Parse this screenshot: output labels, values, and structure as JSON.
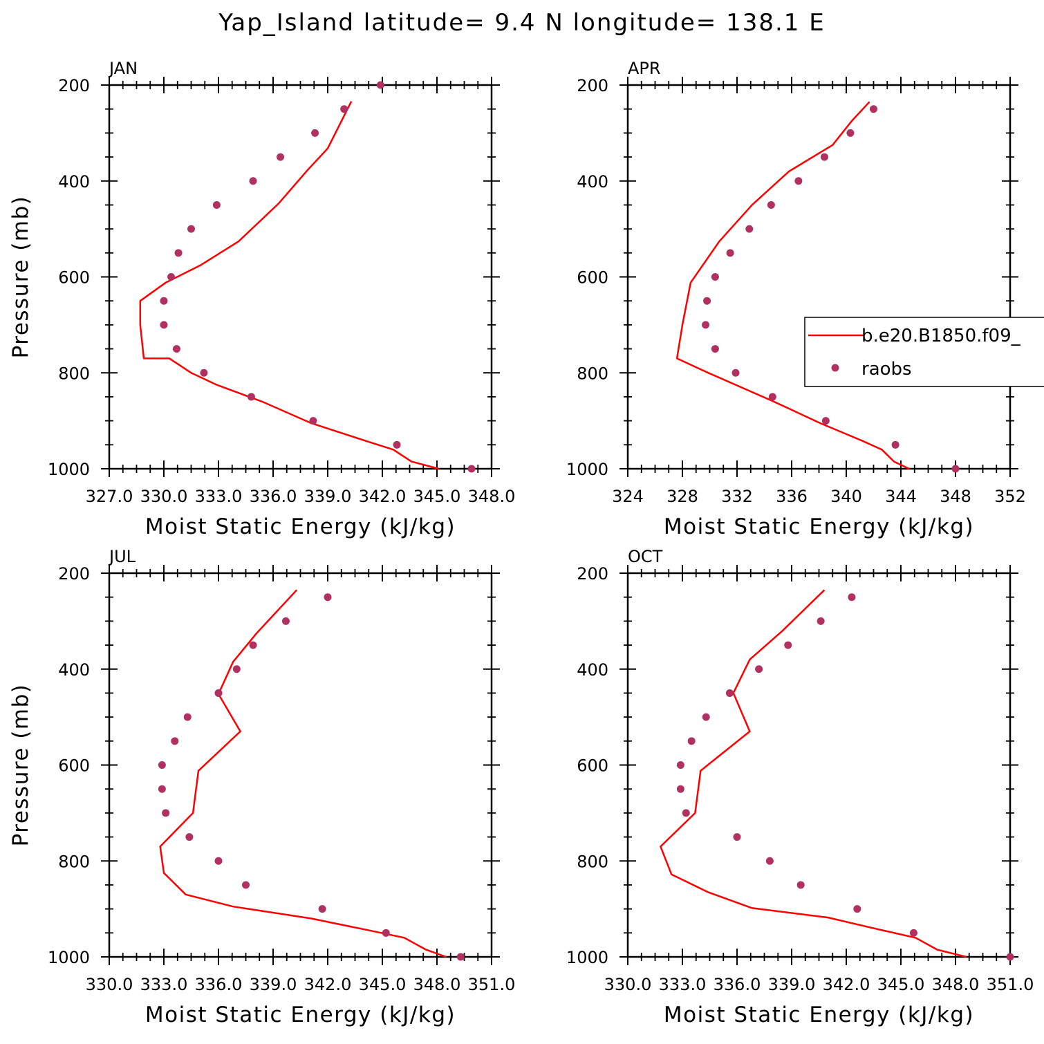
{
  "title": "Yap_Island  latitude= 9.4 N longitude= 138.1 E",
  "colors": {
    "model": "#ff0000",
    "raobs": "#b03060",
    "axes": "#000000"
  },
  "legend": {
    "placement": "right, inside APR panel (clipped by figure edge)",
    "model_label": "b.e20.B1850.f09_",
    "raobs_label": "raobs"
  },
  "chart_data": [
    {
      "type": "line",
      "panel": "JAN",
      "xlabel": "Moist Static Energy (kJ/kg)",
      "ylabel": "Pressure (mb)",
      "xlim": [
        327.0,
        348.0
      ],
      "ylim": [
        1000,
        200
      ],
      "y_axis": "inverted",
      "x_tick_values": [
        327,
        330,
        333,
        336,
        339,
        342,
        345,
        348
      ],
      "x_tick_labels": [
        "327.0",
        "330.0",
        "333.0",
        "336.0",
        "339.0",
        "342.0",
        "345.0",
        "348.0"
      ],
      "y_tick_labels": [
        "200",
        "400",
        "600",
        "800",
        "1000"
      ],
      "series": [
        {
          "name": "b.e20.B1850.f09_",
          "style": "line",
          "x": [
            345.1,
            343.6,
            342.6,
            341.1,
            338.1,
            335.4,
            332.9,
            331.5,
            330.3,
            328.9,
            328.7,
            328.7,
            330.1,
            332.0,
            334.1,
            336.3,
            337.9,
            339.0,
            340.3
          ],
          "y": [
            1000,
            985,
            960,
            942,
            905,
            860,
            825,
            800,
            770,
            770,
            700,
            650,
            612,
            576,
            526,
            447,
            377,
            332,
            234
          ]
        },
        {
          "name": "raobs",
          "style": "markers",
          "x": [
            346.9,
            342.8,
            338.2,
            334.8,
            332.2,
            330.7,
            330.0,
            330.0,
            330.4,
            330.8,
            331.5,
            332.9,
            334.9,
            336.4,
            338.3,
            339.9,
            341.9
          ],
          "y": [
            1000,
            950,
            900,
            850,
            800,
            750,
            700,
            650,
            600,
            550,
            500,
            450,
            400,
            350,
            300,
            250,
            200
          ]
        }
      ]
    },
    {
      "type": "line",
      "panel": "APR",
      "xlabel": "Moist Static Energy (kJ/kg)",
      "ylabel": "",
      "xlim": [
        324,
        352
      ],
      "ylim": [
        1000,
        200
      ],
      "y_axis": "inverted",
      "x_tick_values": [
        324,
        328,
        332,
        336,
        340,
        344,
        348,
        352
      ],
      "x_tick_labels": [
        "324",
        "328",
        "332",
        "336",
        "340",
        "344",
        "348",
        "352"
      ],
      "y_tick_labels": [
        "200",
        "400",
        "600",
        "800",
        "1000"
      ],
      "series": [
        {
          "name": "b.e20.B1850.f09_",
          "style": "line",
          "x": [
            344.6,
            343.5,
            342.6,
            341.2,
            338.1,
            334.7,
            331.9,
            329.9,
            327.6,
            328.0,
            328.6,
            330.7,
            333.1,
            335.8,
            339.0,
            340.4,
            341.7
          ],
          "y": [
            1000,
            985,
            960,
            942,
            905,
            860,
            825,
            800,
            770,
            700,
            612,
            526,
            450,
            380,
            325,
            275,
            235
          ]
        },
        {
          "name": "raobs",
          "style": "markers",
          "x": [
            348.0,
            343.6,
            338.5,
            334.6,
            331.9,
            330.4,
            329.7,
            329.8,
            330.4,
            331.5,
            332.9,
            334.5,
            336.5,
            338.4,
            340.3,
            342.0
          ],
          "y": [
            1000,
            950,
            900,
            850,
            800,
            750,
            700,
            650,
            600,
            550,
            500,
            450,
            400,
            350,
            300,
            250
          ]
        }
      ]
    },
    {
      "type": "line",
      "panel": "JUL",
      "xlabel": "Moist Static Energy (kJ/kg)",
      "ylabel": "Pressure (mb)",
      "xlim": [
        330.0,
        351.0
      ],
      "ylim": [
        1000,
        200
      ],
      "y_axis": "inverted",
      "x_tick_values": [
        330,
        333,
        336,
        339,
        342,
        345,
        348,
        351
      ],
      "x_tick_labels": [
        "330.0",
        "333.0",
        "336.0",
        "339.0",
        "342.0",
        "345.0",
        "348.0",
        "351.0"
      ],
      "y_tick_labels": [
        "200",
        "400",
        "600",
        "800",
        "1000"
      ],
      "series": [
        {
          "name": "b.e20.B1850.f09_",
          "style": "line",
          "x": [
            348.5,
            347.4,
            346.2,
            344.3,
            341.1,
            336.8,
            334.2,
            333.0,
            332.8,
            334.6,
            334.9,
            337.2,
            336.0,
            336.8,
            338.1,
            340.3
          ],
          "y": [
            1000,
            985,
            960,
            945,
            920,
            895,
            870,
            825,
            770,
            700,
            612,
            530,
            452,
            385,
            325,
            235
          ]
        },
        {
          "name": "raobs",
          "style": "markers",
          "x": [
            349.3,
            345.2,
            341.7,
            337.5,
            336.0,
            334.4,
            333.1,
            332.9,
            332.9,
            333.6,
            334.3,
            336.0,
            337.0,
            337.9,
            339.7,
            342.0
          ],
          "y": [
            1000,
            950,
            900,
            850,
            800,
            750,
            700,
            650,
            600,
            550,
            500,
            450,
            400,
            350,
            300,
            250
          ]
        }
      ]
    },
    {
      "type": "line",
      "panel": "OCT",
      "xlabel": "Moist Static Energy (kJ/kg)",
      "ylabel": "",
      "xlim": [
        330.0,
        351.0
      ],
      "ylim": [
        1000,
        200
      ],
      "y_axis": "inverted",
      "x_tick_values": [
        330,
        333,
        336,
        339,
        342,
        345,
        348,
        351
      ],
      "x_tick_labels": [
        "330.0",
        "333.0",
        "336.0",
        "339.0",
        "342.0",
        "345.0",
        "348.0",
        "351.0"
      ],
      "y_tick_labels": [
        "200",
        "400",
        "600",
        "800",
        "1000"
      ],
      "series": [
        {
          "name": "b.e20.B1850.f09_",
          "style": "line",
          "x": [
            348.6,
            347.0,
            345.8,
            343.7,
            341.0,
            336.8,
            334.4,
            332.4,
            331.8,
            333.7,
            334.0,
            336.7,
            335.8,
            336.7,
            338.5,
            340.8
          ],
          "y": [
            1000,
            985,
            960,
            942,
            918,
            898,
            865,
            828,
            770,
            700,
            612,
            530,
            450,
            380,
            320,
            235
          ]
        },
        {
          "name": "raobs",
          "style": "markers",
          "x": [
            351.0,
            345.7,
            342.6,
            339.5,
            337.8,
            336.0,
            333.2,
            332.9,
            332.9,
            333.5,
            334.3,
            335.6,
            337.2,
            338.8,
            340.6,
            342.3
          ],
          "y": [
            1000,
            950,
            900,
            850,
            800,
            750,
            700,
            650,
            600,
            550,
            500,
            450,
            400,
            350,
            300,
            250
          ]
        }
      ]
    }
  ]
}
